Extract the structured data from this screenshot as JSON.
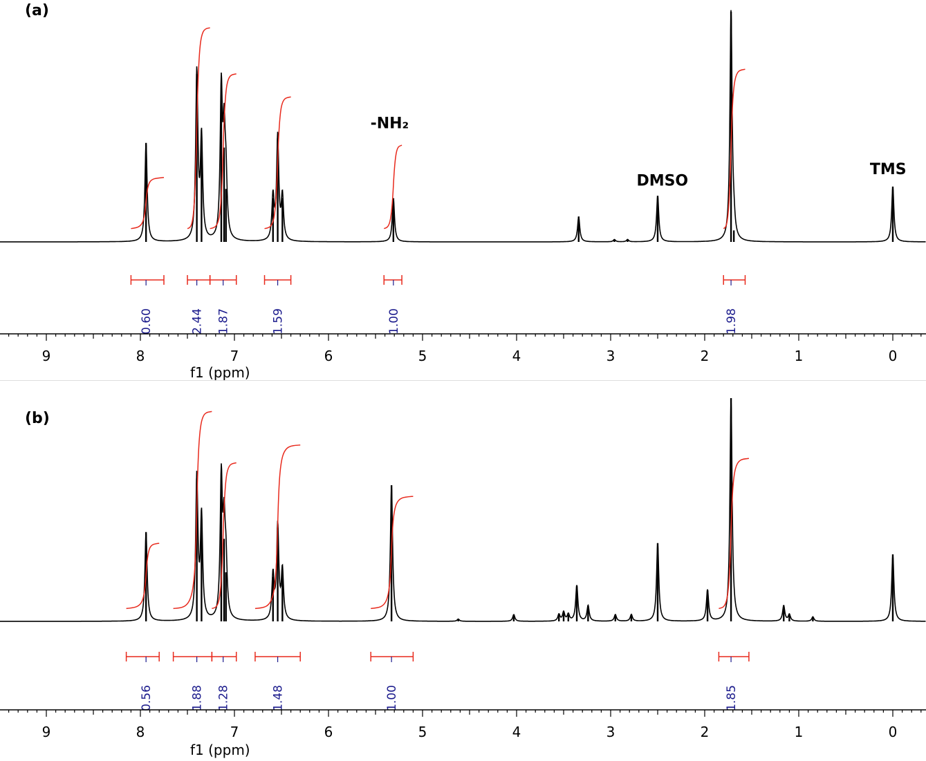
{
  "chart_data": [
    {
      "type": "line",
      "panel_label": "(a)",
      "xlabel": "f1 (ppm)",
      "ylabel": "",
      "xlim": [
        9.5,
        -0.35
      ],
      "x_reversed": true,
      "x_ticks": [
        9,
        8,
        7,
        6,
        5,
        4,
        3,
        2,
        1,
        0
      ],
      "grid": false,
      "line_color": "#000000",
      "integral_color": "#e8291c",
      "integral_label_color": "#1a1a8c",
      "peaks": [
        {
          "ppm": 7.94,
          "height": 0.43
        },
        {
          "ppm": 7.4,
          "height": 0.73
        },
        {
          "ppm": 7.35,
          "height": 0.44
        },
        {
          "ppm": 7.14,
          "height": 0.64
        },
        {
          "ppm": 7.11,
          "height": 0.41
        },
        {
          "ppm": 7.09,
          "height": 0.23
        },
        {
          "ppm": 6.59,
          "height": 0.19
        },
        {
          "ppm": 6.54,
          "height": 0.45
        },
        {
          "ppm": 6.49,
          "height": 0.19
        },
        {
          "ppm": 5.31,
          "height": 0.19
        },
        {
          "ppm": 3.34,
          "height": 0.11
        },
        {
          "ppm": 2.96,
          "height": 0.01
        },
        {
          "ppm": 2.82,
          "height": 0.01
        },
        {
          "ppm": 2.5,
          "height": 0.2
        },
        {
          "ppm": 1.72,
          "height": 1.0
        },
        {
          "ppm": 1.69,
          "height": 0.05
        },
        {
          "ppm": 0.0,
          "height": 0.24
        }
      ],
      "annotations": [
        {
          "text": "-NH₂",
          "ppm": 5.35,
          "height": 0.47
        },
        {
          "text": "DMSO",
          "ppm": 2.45,
          "height": 0.22
        },
        {
          "text": "TMS",
          "ppm": 0.05,
          "height": 0.27
        }
      ],
      "integrals": [
        {
          "from": 8.1,
          "to": 7.75,
          "center": 7.94,
          "value": "0.60",
          "curve_start": 0.07,
          "curve_end": 0.28
        },
        {
          "from": 7.5,
          "to": 7.26,
          "center": 7.4,
          "value": "2.44",
          "curve_start": 0.07,
          "curve_end": 0.93
        },
        {
          "from": 7.26,
          "to": 6.98,
          "center": 7.12,
          "value": "1.87",
          "curve_start": 0.07,
          "curve_end": 0.73
        },
        {
          "from": 6.68,
          "to": 6.4,
          "center": 6.54,
          "value": "1.59",
          "curve_start": 0.07,
          "curve_end": 0.63
        },
        {
          "from": 5.41,
          "to": 5.22,
          "center": 5.31,
          "value": "1.00",
          "curve_start": 0.07,
          "curve_end": 0.42
        },
        {
          "from": 1.8,
          "to": 1.57,
          "center": 1.72,
          "value": "1.98",
          "curve_start": 0.07,
          "curve_end": 0.75
        }
      ]
    },
    {
      "type": "line",
      "panel_label": "(b)",
      "xlabel": "f1 (ppm)",
      "ylabel": "",
      "xlim": [
        9.5,
        -0.35
      ],
      "x_reversed": true,
      "x_ticks": [
        9,
        8,
        7,
        6,
        5,
        4,
        3,
        2,
        1,
        0
      ],
      "grid": false,
      "line_color": "#000000",
      "integral_color": "#e8291c",
      "integral_label_color": "#1a1a8c",
      "peaks": [
        {
          "ppm": 7.94,
          "height": 0.4
        },
        {
          "ppm": 7.4,
          "height": 0.64
        },
        {
          "ppm": 7.35,
          "height": 0.46
        },
        {
          "ppm": 7.14,
          "height": 0.62
        },
        {
          "ppm": 7.11,
          "height": 0.37
        },
        {
          "ppm": 7.09,
          "height": 0.22
        },
        {
          "ppm": 6.59,
          "height": 0.2
        },
        {
          "ppm": 6.54,
          "height": 0.42
        },
        {
          "ppm": 6.49,
          "height": 0.22
        },
        {
          "ppm": 5.33,
          "height": 0.61
        },
        {
          "ppm": 4.62,
          "height": 0.01
        },
        {
          "ppm": 4.03,
          "height": 0.03
        },
        {
          "ppm": 3.55,
          "height": 0.03
        },
        {
          "ppm": 3.5,
          "height": 0.04
        },
        {
          "ppm": 3.45,
          "height": 0.03
        },
        {
          "ppm": 3.36,
          "height": 0.16
        },
        {
          "ppm": 3.24,
          "height": 0.07
        },
        {
          "ppm": 2.95,
          "height": 0.03
        },
        {
          "ppm": 2.78,
          "height": 0.03
        },
        {
          "ppm": 2.5,
          "height": 0.35
        },
        {
          "ppm": 1.97,
          "height": 0.14
        },
        {
          "ppm": 1.72,
          "height": 1.0
        },
        {
          "ppm": 1.16,
          "height": 0.07
        },
        {
          "ppm": 1.1,
          "height": 0.03
        },
        {
          "ppm": 0.85,
          "height": 0.02
        },
        {
          "ppm": 0.0,
          "height": 0.3
        }
      ],
      "annotations": [],
      "integrals": [
        {
          "from": 8.15,
          "to": 7.8,
          "center": 7.94,
          "value": "0.56",
          "curve_start": 0.07,
          "curve_end": 0.35
        },
        {
          "from": 7.65,
          "to": 7.24,
          "center": 7.4,
          "value": "1.88",
          "curve_start": 0.07,
          "curve_end": 0.94
        },
        {
          "from": 7.24,
          "to": 6.98,
          "center": 7.12,
          "value": "1.28",
          "curve_start": 0.07,
          "curve_end": 0.71
        },
        {
          "from": 6.78,
          "to": 6.3,
          "center": 6.54,
          "value": "1.48",
          "curve_start": 0.07,
          "curve_end": 0.79
        },
        {
          "from": 5.55,
          "to": 5.1,
          "center": 5.33,
          "value": "1.00",
          "curve_start": 0.07,
          "curve_end": 0.56
        },
        {
          "from": 1.85,
          "to": 1.53,
          "center": 1.72,
          "value": "1.85",
          "curve_start": 0.07,
          "curve_end": 0.73
        }
      ]
    }
  ]
}
